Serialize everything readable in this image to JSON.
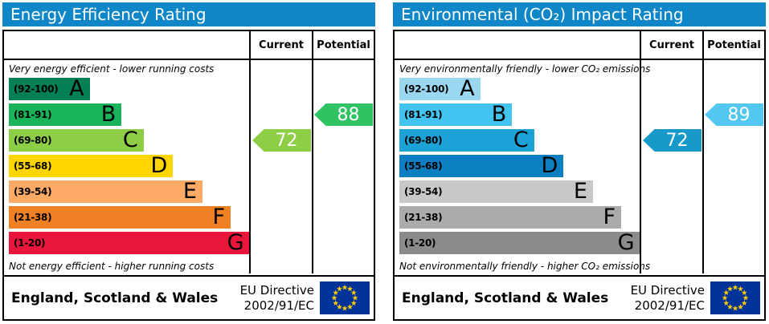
{
  "charts": [
    {
      "title": "Energy Efficiency Rating",
      "columns": {
        "current": "Current",
        "potential": "Potential"
      },
      "top_caption": "Very energy efficient - lower running costs",
      "bottom_caption": "Not energy efficient - higher running costs",
      "bands": [
        {
          "letter": "A",
          "range": "(92-100)",
          "color": "#008054"
        },
        {
          "letter": "B",
          "range": "(81-91)",
          "color": "#19b459"
        },
        {
          "letter": "C",
          "range": "(69-80)",
          "color": "#8dce46"
        },
        {
          "letter": "D",
          "range": "(55-68)",
          "color": "#ffd500"
        },
        {
          "letter": "E",
          "range": "(39-54)",
          "color": "#fcaa65"
        },
        {
          "letter": "F",
          "range": "(21-38)",
          "color": "#ef8023"
        },
        {
          "letter": "G",
          "range": "(1-20)",
          "color": "#e9153b"
        }
      ],
      "current": {
        "value": 72,
        "band": "C",
        "color": "#8dce46"
      },
      "potential": {
        "value": 88,
        "band": "B",
        "color": "#30c364"
      },
      "footer": {
        "region": "England, Scotland & Wales",
        "directive_line1": "EU Directive",
        "directive_line2": "2002/91/EC"
      }
    },
    {
      "title": "Environmental (CO₂) Impact Rating",
      "columns": {
        "current": "Current",
        "potential": "Potential"
      },
      "top_caption": "Very environmentally friendly - lower CO₂ emissions",
      "bottom_caption": "Not environmentally friendly - higher CO₂ emissions",
      "bands": [
        {
          "letter": "A",
          "range": "(92-100)",
          "color": "#9ad7f0"
        },
        {
          "letter": "B",
          "range": "(81-91)",
          "color": "#43c4f0"
        },
        {
          "letter": "C",
          "range": "(69-80)",
          "color": "#1da2d8"
        },
        {
          "letter": "D",
          "range": "(55-68)",
          "color": "#0c7ec2"
        },
        {
          "letter": "E",
          "range": "(39-54)",
          "color": "#c8c8c8"
        },
        {
          "letter": "F",
          "range": "(21-38)",
          "color": "#ababab"
        },
        {
          "letter": "G",
          "range": "(1-20)",
          "color": "#8b8b8b"
        }
      ],
      "current": {
        "value": 72,
        "band": "C",
        "color": "#1799c9"
      },
      "potential": {
        "value": 89,
        "band": "B",
        "color": "#52c8f0"
      },
      "footer": {
        "region": "England, Scotland & Wales",
        "directive_line1": "EU Directive",
        "directive_line2": "2002/91/EC"
      }
    }
  ],
  "colors": {
    "header_bar": "#0e86c7",
    "eu_flag_blue": "#003399",
    "eu_flag_star": "#ffcc00"
  },
  "chart_data": [
    {
      "type": "bar",
      "title": "Energy Efficiency Rating",
      "categories": [
        "A (92-100)",
        "B (81-91)",
        "C (69-80)",
        "D (55-68)",
        "E (39-54)",
        "F (21-38)",
        "G (1-20)"
      ],
      "band_colors": [
        "#008054",
        "#19b459",
        "#8dce46",
        "#ffd500",
        "#fcaa65",
        "#ef8023",
        "#e9153b"
      ],
      "series": [
        {
          "name": "Current",
          "value": 72,
          "band": "C"
        },
        {
          "name": "Potential",
          "value": 88,
          "band": "B"
        }
      ],
      "xlim": [
        1,
        100
      ],
      "annotations": [
        "Very energy efficient - lower running costs",
        "Not energy efficient - higher running costs",
        "England, Scotland & Wales",
        "EU Directive 2002/91/EC"
      ]
    },
    {
      "type": "bar",
      "title": "Environmental (CO₂) Impact Rating",
      "categories": [
        "A (92-100)",
        "B (81-91)",
        "C (69-80)",
        "D (55-68)",
        "E (39-54)",
        "F (21-38)",
        "G (1-20)"
      ],
      "band_colors": [
        "#9ad7f0",
        "#43c4f0",
        "#1da2d8",
        "#0c7ec2",
        "#c8c8c8",
        "#ababab",
        "#8b8b8b"
      ],
      "series": [
        {
          "name": "Current",
          "value": 72,
          "band": "C"
        },
        {
          "name": "Potential",
          "value": 89,
          "band": "B"
        }
      ],
      "xlim": [
        1,
        100
      ],
      "annotations": [
        "Very environmentally friendly - lower CO₂ emissions",
        "Not environmentally friendly - higher CO₂ emissions",
        "England, Scotland & Wales",
        "EU Directive 2002/91/EC"
      ]
    }
  ]
}
